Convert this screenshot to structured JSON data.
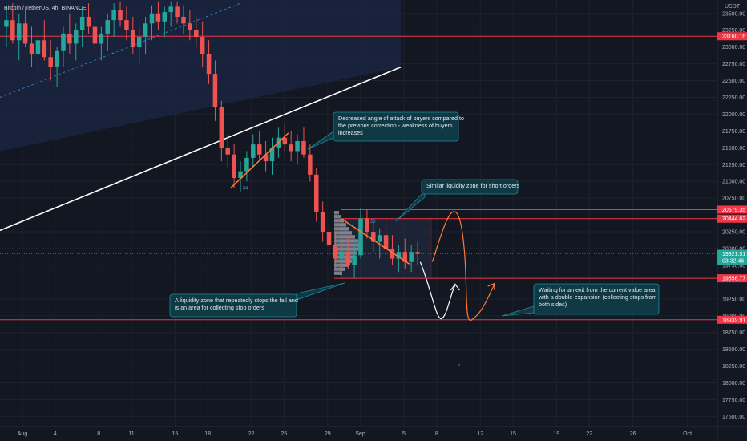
{
  "header": {
    "symbol_title": "Bitcoin / TetherUS, 4h, BINANCE",
    "currency": "USDT"
  },
  "colors": {
    "background": "#131722",
    "grid": "#1e222d",
    "up_candle": "#26a69a",
    "down_candle": "#ef5350",
    "level_line": "#f23645",
    "trendline": "#ffffff",
    "channel_fill": "#1b2440",
    "orange_path": "#ff7b39",
    "white_path": "#ffffff",
    "note_fill": "#0f3a45",
    "note_border": "#1e8a98",
    "current_price": "#26a69a"
  },
  "chart_data": {
    "type": "candlestick",
    "xlabel": "",
    "ylabel": "",
    "ylim": [
      17350,
      23700
    ],
    "y_ticks": [
      {
        "value": 23500,
        "label": "23500.00"
      },
      {
        "value": 23250,
        "label": "23250.00"
      },
      {
        "value": 23000,
        "label": "23000.00"
      },
      {
        "value": 22750,
        "label": "22750.00"
      },
      {
        "value": 22500,
        "label": "22500.00"
      },
      {
        "value": 22250,
        "label": "22250.00"
      },
      {
        "value": 22000,
        "label": "22000.00"
      },
      {
        "value": 21750,
        "label": "21750.00"
      },
      {
        "value": 21500,
        "label": "21500.00"
      },
      {
        "value": 21250,
        "label": "21250.00"
      },
      {
        "value": 21000,
        "label": "21000.00"
      },
      {
        "value": 20750,
        "label": "20750.00"
      },
      {
        "value": 20250,
        "label": "20250.00"
      },
      {
        "value": 20000,
        "label": "20000.00"
      },
      {
        "value": 19750,
        "label": "19750.00"
      },
      {
        "value": 19250,
        "label": "19250.00"
      },
      {
        "value": 19000,
        "label": "19000.00"
      },
      {
        "value": 18750,
        "label": "18750.00"
      },
      {
        "value": 18500,
        "label": "18500.00"
      },
      {
        "value": 18250,
        "label": "18250.00"
      },
      {
        "value": 18000,
        "label": "18000.00"
      },
      {
        "value": 17750,
        "label": "17750.00"
      },
      {
        "value": 17500,
        "label": "17500.00"
      }
    ],
    "x_ticks": [
      {
        "day": 0,
        "label": "Aug"
      },
      {
        "day": 3,
        "label": "4"
      },
      {
        "day": 7,
        "label": "8"
      },
      {
        "day": 10,
        "label": "11"
      },
      {
        "day": 14,
        "label": "15"
      },
      {
        "day": 17,
        "label": "18"
      },
      {
        "day": 21,
        "label": "22"
      },
      {
        "day": 24,
        "label": "25"
      },
      {
        "day": 28,
        "label": "29"
      },
      {
        "day": 31,
        "label": "Sep"
      },
      {
        "day": 35,
        "label": "5"
      },
      {
        "day": 38,
        "label": "8"
      },
      {
        "day": 42,
        "label": "12"
      },
      {
        "day": 45,
        "label": "15"
      },
      {
        "day": 49,
        "label": "19"
      },
      {
        "day": 52,
        "label": "22"
      },
      {
        "day": 56,
        "label": "26"
      },
      {
        "day": 61,
        "label": "Oct"
      }
    ],
    "levels": [
      {
        "value": 23160.16,
        "label": "23160.16"
      },
      {
        "value": 20579.35,
        "label": "20579.35"
      },
      {
        "value": 20444.62,
        "label": "20444.62"
      },
      {
        "value": 19556.77,
        "label": "19556.77"
      },
      {
        "value": 18939.91,
        "label": "18939.91"
      }
    ],
    "current_price": {
      "value": 19921.51,
      "label": "19921.51",
      "countdown": "03:32:46"
    },
    "candles_ohlc": [
      [
        23300,
        23600,
        23000,
        23400
      ],
      [
        23400,
        23650,
        23050,
        23100
      ],
      [
        23100,
        23500,
        22800,
        23350
      ],
      [
        23350,
        23600,
        23000,
        23050
      ],
      [
        23050,
        23300,
        22700,
        22900
      ],
      [
        22900,
        23200,
        22600,
        23100
      ],
      [
        23100,
        23400,
        22800,
        22850
      ],
      [
        22850,
        23100,
        22500,
        22700
      ],
      [
        22700,
        23000,
        22400,
        22950
      ],
      [
        22950,
        23300,
        22700,
        23200
      ],
      [
        23200,
        23500,
        22900,
        23050
      ],
      [
        23050,
        23350,
        22800,
        23250
      ],
      [
        23250,
        23600,
        23000,
        23450
      ],
      [
        23450,
        23650,
        23200,
        23300
      ],
      [
        23300,
        23550,
        22900,
        23050
      ],
      [
        23050,
        23300,
        22800,
        23200
      ],
      [
        23200,
        23500,
        22950,
        23400
      ],
      [
        23400,
        23650,
        23150,
        23550
      ],
      [
        23550,
        23680,
        23300,
        23400
      ],
      [
        23400,
        23600,
        23100,
        23250
      ],
      [
        23250,
        23450,
        22900,
        23000
      ],
      [
        23000,
        23300,
        22750,
        23150
      ],
      [
        23150,
        23450,
        22900,
        23350
      ],
      [
        23350,
        23620,
        23100,
        23500
      ],
      [
        23500,
        23680,
        23250,
        23380
      ],
      [
        23380,
        23600,
        23150,
        23520
      ],
      [
        23520,
        23680,
        23300,
        23600
      ],
      [
        23600,
        23680,
        23350,
        23450
      ],
      [
        23450,
        23620,
        23200,
        23350
      ],
      [
        23350,
        23550,
        23100,
        23250
      ],
      [
        23250,
        23450,
        23000,
        23150
      ],
      [
        23150,
        23380,
        22700,
        22900
      ],
      [
        22900,
        23100,
        22450,
        22600
      ],
      [
        22600,
        22800,
        21900,
        22100
      ],
      [
        22100,
        22200,
        21300,
        21500
      ],
      [
        21500,
        21700,
        21200,
        21400
      ],
      [
        21400,
        21550,
        20900,
        21050
      ],
      [
        21050,
        21300,
        20850,
        21150
      ],
      [
        21150,
        21450,
        21000,
        21350
      ],
      [
        21350,
        21700,
        21200,
        21550
      ],
      [
        21550,
        21750,
        21300,
        21400
      ],
      [
        21400,
        21600,
        21150,
        21300
      ],
      [
        21300,
        21650,
        21100,
        21500
      ],
      [
        21500,
        21800,
        21350,
        21650
      ],
      [
        21650,
        21850,
        21450,
        21550
      ],
      [
        21550,
        21750,
        21300,
        21450
      ],
      [
        21450,
        21700,
        21250,
        21600
      ],
      [
        21600,
        21800,
        21350,
        21400
      ],
      [
        21400,
        21550,
        21000,
        21100
      ],
      [
        21100,
        21200,
        20400,
        20550
      ],
      [
        20550,
        20700,
        20100,
        20250
      ],
      [
        20250,
        20400,
        19900,
        20050
      ],
      [
        20050,
        20250,
        19700,
        19850
      ],
      [
        19850,
        20100,
        19600,
        19950
      ],
      [
        19950,
        20200,
        19700,
        19750
      ],
      [
        19750,
        20050,
        19560,
        19900
      ],
      [
        19900,
        20600,
        19850,
        20450
      ],
      [
        20450,
        20580,
        20150,
        20250
      ],
      [
        20250,
        20400,
        19950,
        20100
      ],
      [
        20100,
        20300,
        19850,
        20200
      ],
      [
        20200,
        20450,
        19950,
        20000
      ],
      [
        20000,
        20200,
        19750,
        19850
      ],
      [
        19850,
        20050,
        19650,
        19950
      ],
      [
        19950,
        20150,
        19700,
        19800
      ],
      [
        19800,
        20050,
        19650,
        19950
      ],
      [
        19950,
        20100,
        19750,
        19921.51
      ]
    ],
    "annotations": [
      {
        "text": "Decreased angle of attack of buyers compared to the previous correction - weakness of buyers increases"
      },
      {
        "text": "Similar liquidity zone for short orders"
      },
      {
        "text": "A liquidity zone that repeatedly stops the fall and is an area for collecting stop orders"
      },
      {
        "text": "Waiting for an exit from the current value area with a double-expansion (collecting stops from both sides)"
      }
    ],
    "small_labels": [
      "34",
      "30"
    ]
  }
}
